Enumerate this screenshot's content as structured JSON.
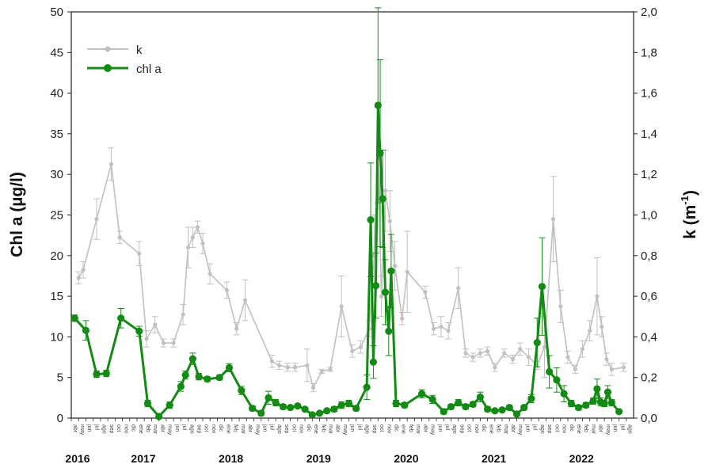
{
  "chart_data": {
    "type": "line",
    "title": "",
    "ylabel_left": "Chl a (µg/l)",
    "ylabel_right_main": "k (m",
    "ylabel_right_sup": "-1",
    "ylabel_right_close": ")",
    "ylim_left": [
      0,
      50
    ],
    "ylim_right": [
      0,
      2.0
    ],
    "left_ticks": [
      "0",
      "5",
      "10",
      "15",
      "20",
      "25",
      "30",
      "35",
      "40",
      "45",
      "50"
    ],
    "right_ticks": [
      "0,0",
      "0,2",
      "0,4",
      "0,6",
      "0,8",
      "1,0",
      "1,2",
      "1,4",
      "1,6",
      "1,8",
      "2,0"
    ],
    "x_start": "2016-04",
    "x_end": "2022-08",
    "month_labels": [
      "abr",
      "may",
      "jun",
      "jul",
      "ago",
      "sep",
      "oct",
      "nov",
      "dic",
      "ene",
      "feb",
      "mar",
      "abr",
      "may",
      "jun",
      "jul",
      "ago",
      "sep",
      "oct",
      "nov",
      "dic",
      "ene",
      "feb",
      "mar",
      "abr",
      "may",
      "jun",
      "jul",
      "ago",
      "sep",
      "oct",
      "nov",
      "dic",
      "ene",
      "feb",
      "mar",
      "abr",
      "may",
      "jun",
      "jul",
      "ago",
      "sep",
      "oct",
      "nov",
      "dic",
      "ene",
      "feb",
      "mar",
      "abr",
      "may",
      "jun",
      "jul",
      "ago",
      "sep",
      "oct",
      "nov",
      "dic",
      "ene",
      "feb",
      "mar",
      "abr",
      "may",
      "jun",
      "jul",
      "ago",
      "sep",
      "oct",
      "nov",
      "dic",
      "ene",
      "feb",
      "mar",
      "abr",
      "may",
      "jun",
      "jul",
      "ago"
    ],
    "year_labels": [
      {
        "label": "2016",
        "month": 0
      },
      {
        "label": "2017",
        "month": 9
      },
      {
        "label": "2018",
        "month": 21
      },
      {
        "label": "2019",
        "month": 33
      },
      {
        "label": "2020",
        "month": 45
      },
      {
        "label": "2021",
        "month": 57
      },
      {
        "label": "2022",
        "month": 69
      }
    ],
    "legend_position": "top-left",
    "grid": false,
    "series": [
      {
        "name": "k",
        "axis": "right",
        "color": "#c0c0c0",
        "points": [
          {
            "x": "2016-05-01",
            "y": 0.69,
            "err": 0.03
          },
          {
            "x": "2016-05-20",
            "y": 0.73,
            "err": 0.04
          },
          {
            "x": "2016-07-15",
            "y": 0.98,
            "err": 0.1
          },
          {
            "x": "2016-09-15",
            "y": 1.25,
            "err": 0.08
          },
          {
            "x": "2016-10-20",
            "y": 0.89,
            "err": 0.03
          },
          {
            "x": "2017-01-10",
            "y": 0.81,
            "err": 0.06
          },
          {
            "x": "2017-02-10",
            "y": 0.39,
            "err": 0.04
          },
          {
            "x": "2017-03-15",
            "y": 0.46,
            "err": 0.04
          },
          {
            "x": "2017-04-20",
            "y": 0.37,
            "err": 0.02
          },
          {
            "x": "2017-06-01",
            "y": 0.37,
            "err": 0.02
          },
          {
            "x": "2017-07-10",
            "y": 0.51,
            "err": 0.05
          },
          {
            "x": "2017-08-01",
            "y": 0.84,
            "err": 0.1
          },
          {
            "x": "2017-08-20",
            "y": 0.89,
            "err": 0.05
          },
          {
            "x": "2017-09-10",
            "y": 0.94,
            "err": 0.03
          },
          {
            "x": "2017-10-01",
            "y": 0.86,
            "err": 0.05
          },
          {
            "x": "2017-11-01",
            "y": 0.71,
            "err": 0.05
          },
          {
            "x": "2018-01-10",
            "y": 0.63,
            "err": 0.04
          },
          {
            "x": "2018-02-20",
            "y": 0.44,
            "err": 0.03
          },
          {
            "x": "2018-03-25",
            "y": 0.58,
            "err": 0.1
          },
          {
            "x": "2018-07-15",
            "y": 0.28,
            "err": 0.03
          },
          {
            "x": "2018-08-15",
            "y": 0.26,
            "err": 0.02
          },
          {
            "x": "2018-09-20",
            "y": 0.25,
            "err": 0.02
          },
          {
            "x": "2018-10-20",
            "y": 0.25,
            "err": 0.02
          },
          {
            "x": "2018-12-10",
            "y": 0.26,
            "err": 0.08
          },
          {
            "x": "2019-01-05",
            "y": 0.15,
            "err": 0.02
          },
          {
            "x": "2019-02-10",
            "y": 0.23,
            "err": 0.01
          },
          {
            "x": "2019-03-15",
            "y": 0.24,
            "err": 0.01
          },
          {
            "x": "2019-05-01",
            "y": 0.55,
            "err": 0.15
          },
          {
            "x": "2019-06-15",
            "y": 0.33,
            "err": 0.03
          },
          {
            "x": "2019-07-20",
            "y": 0.35,
            "err": 0.03
          },
          {
            "x": "2019-08-25",
            "y": 0.44,
            "err": 0.04
          },
          {
            "x": "2019-09-15",
            "y": 0.8,
            "err": 0.2
          },
          {
            "x": "2019-10-01",
            "y": 1.28,
            "err": 0.25
          },
          {
            "x": "2019-10-15",
            "y": 0.6,
            "err": 0.1
          },
          {
            "x": "2019-11-01",
            "y": 1.12,
            "err": 0.2
          },
          {
            "x": "2019-11-20",
            "y": 0.97,
            "err": 0.15
          },
          {
            "x": "2019-12-10",
            "y": 0.75,
            "err": 0.12
          },
          {
            "x": "2020-01-10",
            "y": 0.49,
            "err": 0.03
          },
          {
            "x": "2020-02-01",
            "y": 0.72,
            "err": 0.2
          },
          {
            "x": "2020-04-15",
            "y": 0.62,
            "err": 0.03
          },
          {
            "x": "2020-05-20",
            "y": 0.44,
            "err": 0.03
          },
          {
            "x": "2020-06-20",
            "y": 0.45,
            "err": 0.05
          },
          {
            "x": "2020-07-20",
            "y": 0.43,
            "err": 0.04
          },
          {
            "x": "2020-09-01",
            "y": 0.64,
            "err": 0.1
          },
          {
            "x": "2020-10-01",
            "y": 0.32,
            "err": 0.02
          },
          {
            "x": "2020-11-01",
            "y": 0.3,
            "err": 0.02
          },
          {
            "x": "2020-12-01",
            "y": 0.32,
            "err": 0.02
          },
          {
            "x": "2021-01-01",
            "y": 0.33,
            "err": 0.02
          },
          {
            "x": "2021-02-01",
            "y": 0.25,
            "err": 0.02
          },
          {
            "x": "2021-03-10",
            "y": 0.32,
            "err": 0.02
          },
          {
            "x": "2021-04-15",
            "y": 0.29,
            "err": 0.02
          },
          {
            "x": "2021-05-15",
            "y": 0.34,
            "err": 0.03
          },
          {
            "x": "2021-06-20",
            "y": 0.3,
            "err": 0.04
          },
          {
            "x": "2021-07-25",
            "y": 0.26,
            "err": 0.02
          },
          {
            "x": "2021-08-25",
            "y": 0.35,
            "err": 0.15
          },
          {
            "x": "2021-10-01",
            "y": 0.98,
            "err": 0.21
          },
          {
            "x": "2021-11-01",
            "y": 0.55,
            "err": 0.08
          },
          {
            "x": "2021-12-01",
            "y": 0.3,
            "err": 0.03
          },
          {
            "x": "2022-01-01",
            "y": 0.24,
            "err": 0.02
          },
          {
            "x": "2022-02-01",
            "y": 0.34,
            "err": 0.04
          },
          {
            "x": "2022-03-01",
            "y": 0.43,
            "err": 0.05
          },
          {
            "x": "2022-04-01",
            "y": 0.6,
            "err": 0.19
          },
          {
            "x": "2022-04-20",
            "y": 0.45,
            "err": 0.05
          },
          {
            "x": "2022-05-10",
            "y": 0.29,
            "err": 0.03
          },
          {
            "x": "2022-06-01",
            "y": 0.24,
            "err": 0.03
          },
          {
            "x": "2022-07-20",
            "y": 0.25,
            "err": 0.02
          }
        ]
      },
      {
        "name": "chl a",
        "axis": "left",
        "color": "#138a13",
        "points": [
          {
            "x": "2016-04-15",
            "y": 12.3,
            "err": 0.4
          },
          {
            "x": "2016-06-01",
            "y": 10.8,
            "err": 1.2
          },
          {
            "x": "2016-07-15",
            "y": 5.4,
            "err": 0.4
          },
          {
            "x": "2016-08-25",
            "y": 5.5,
            "err": 0.4
          },
          {
            "x": "2016-10-25",
            "y": 12.3,
            "err": 1.2
          },
          {
            "x": "2017-01-10",
            "y": 10.7,
            "err": 0.6
          },
          {
            "x": "2017-02-15",
            "y": 1.8,
            "err": 0.4
          },
          {
            "x": "2017-04-01",
            "y": 0.2,
            "err": 0.3
          },
          {
            "x": "2017-05-15",
            "y": 1.6,
            "err": 0.4
          },
          {
            "x": "2017-07-01",
            "y": 3.9,
            "err": 0.6
          },
          {
            "x": "2017-07-20",
            "y": 5.3,
            "err": 0.5
          },
          {
            "x": "2017-08-20",
            "y": 7.3,
            "err": 0.7
          },
          {
            "x": "2017-09-15",
            "y": 5.1,
            "err": 0.4
          },
          {
            "x": "2017-10-20",
            "y": 4.8,
            "err": 0.3
          },
          {
            "x": "2017-12-10",
            "y": 5.0,
            "err": 0.3
          },
          {
            "x": "2018-01-20",
            "y": 6.2,
            "err": 0.5
          },
          {
            "x": "2018-03-10",
            "y": 3.4,
            "err": 0.5
          },
          {
            "x": "2018-04-25",
            "y": 1.2,
            "err": 0.3
          },
          {
            "x": "2018-06-01",
            "y": 0.6,
            "err": 0.3
          },
          {
            "x": "2018-07-01",
            "y": 2.5,
            "err": 0.8
          },
          {
            "x": "2018-08-01",
            "y": 1.9,
            "err": 0.4
          },
          {
            "x": "2018-09-01",
            "y": 1.4,
            "err": 0.3
          },
          {
            "x": "2018-10-01",
            "y": 1.3,
            "err": 0.2
          },
          {
            "x": "2018-11-01",
            "y": 1.5,
            "err": 0.2
          },
          {
            "x": "2018-12-01",
            "y": 1.1,
            "err": 0.2
          },
          {
            "x": "2019-01-01",
            "y": 0.4,
            "err": 0.2
          },
          {
            "x": "2019-02-01",
            "y": 0.6,
            "err": 0.2
          },
          {
            "x": "2019-03-01",
            "y": 0.9,
            "err": 0.2
          },
          {
            "x": "2019-04-01",
            "y": 1.1,
            "err": 0.3
          },
          {
            "x": "2019-05-01",
            "y": 1.6,
            "err": 0.4
          },
          {
            "x": "2019-06-01",
            "y": 1.8,
            "err": 0.4
          },
          {
            "x": "2019-07-01",
            "y": 1.2,
            "err": 0.3
          },
          {
            "x": "2019-08-15",
            "y": 3.8,
            "err": 1.5
          },
          {
            "x": "2019-09-01",
            "y": 24.4,
            "err": 7.0
          },
          {
            "x": "2019-09-12",
            "y": 6.9,
            "err": 2.0
          },
          {
            "x": "2019-09-22",
            "y": 16.3,
            "err": 4.0
          },
          {
            "x": "2019-10-01",
            "y": 38.5,
            "err": 12.0
          },
          {
            "x": "2019-10-10",
            "y": 32.6,
            "err": 11.5
          },
          {
            "x": "2019-10-20",
            "y": 27.0,
            "err": 6.0
          },
          {
            "x": "2019-11-01",
            "y": 15.5,
            "err": 4.0
          },
          {
            "x": "2019-11-15",
            "y": 10.7,
            "err": 3.0
          },
          {
            "x": "2019-11-25",
            "y": 18.1,
            "err": 4.5
          },
          {
            "x": "2019-12-15",
            "y": 1.8,
            "err": 0.4
          },
          {
            "x": "2020-01-20",
            "y": 1.6,
            "err": 0.3
          },
          {
            "x": "2020-04-01",
            "y": 3.0,
            "err": 0.5
          },
          {
            "x": "2020-05-15",
            "y": 2.3,
            "err": 0.5
          },
          {
            "x": "2020-07-01",
            "y": 0.8,
            "err": 0.3
          },
          {
            "x": "2020-08-01",
            "y": 1.4,
            "err": 0.3
          },
          {
            "x": "2020-09-01",
            "y": 1.9,
            "err": 0.4
          },
          {
            "x": "2020-10-01",
            "y": 1.4,
            "err": 0.3
          },
          {
            "x": "2020-11-01",
            "y": 1.7,
            "err": 0.3
          },
          {
            "x": "2020-12-01",
            "y": 2.6,
            "err": 0.6
          },
          {
            "x": "2021-01-01",
            "y": 1.1,
            "err": 0.3
          },
          {
            "x": "2021-02-01",
            "y": 0.9,
            "err": 0.2
          },
          {
            "x": "2021-03-01",
            "y": 1.0,
            "err": 0.2
          },
          {
            "x": "2021-04-01",
            "y": 1.3,
            "err": 0.3
          },
          {
            "x": "2021-05-01",
            "y": 0.5,
            "err": 0.2
          },
          {
            "x": "2021-06-01",
            "y": 1.3,
            "err": 0.3
          },
          {
            "x": "2021-07-01",
            "y": 2.4,
            "err": 0.5
          },
          {
            "x": "2021-07-25",
            "y": 9.3,
            "err": 3.0
          },
          {
            "x": "2021-08-15",
            "y": 16.2,
            "err": 6.0
          },
          {
            "x": "2021-09-15",
            "y": 5.7,
            "err": 2.0
          },
          {
            "x": "2021-10-15",
            "y": 4.7,
            "err": 1.5
          },
          {
            "x": "2021-11-15",
            "y": 3.0,
            "err": 1.0
          },
          {
            "x": "2021-12-15",
            "y": 1.8,
            "err": 0.4
          },
          {
            "x": "2022-01-15",
            "y": 1.3,
            "err": 0.3
          },
          {
            "x": "2022-02-15",
            "y": 1.6,
            "err": 0.3
          },
          {
            "x": "2022-03-15",
            "y": 2.1,
            "err": 0.4
          },
          {
            "x": "2022-04-01",
            "y": 3.6,
            "err": 1.2
          },
          {
            "x": "2022-04-15",
            "y": 2.0,
            "err": 0.5
          },
          {
            "x": "2022-05-01",
            "y": 1.8,
            "err": 0.4
          },
          {
            "x": "2022-05-15",
            "y": 3.2,
            "err": 0.8
          },
          {
            "x": "2022-06-01",
            "y": 1.9,
            "err": 0.4
          },
          {
            "x": "2022-07-01",
            "y": 0.8,
            "err": 0.2
          }
        ]
      }
    ]
  }
}
